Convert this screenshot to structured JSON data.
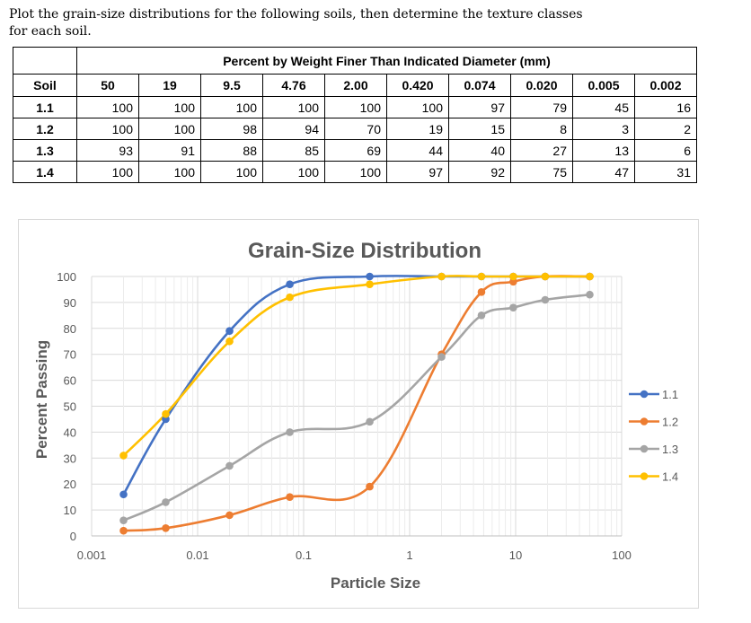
{
  "problem": {
    "line1": "Plot the grain-size distributions for the following soils, then determine the texture classes",
    "line2": "for each soil."
  },
  "table": {
    "caption": "Percent by Weight Finer Than Indicated Diameter (mm)",
    "soil_header": "Soil",
    "diameters": [
      "50",
      "19",
      "9.5",
      "4.76",
      "2.00",
      "0.420",
      "0.074",
      "0.020",
      "0.005",
      "0.002"
    ],
    "rows": [
      {
        "soil": "1.1",
        "values": [
          "100",
          "100",
          "100",
          "100",
          "100",
          "100",
          "97",
          "79",
          "45",
          "16"
        ]
      },
      {
        "soil": "1.2",
        "values": [
          "100",
          "100",
          "98",
          "94",
          "70",
          "19",
          "15",
          "8",
          "3",
          "2"
        ]
      },
      {
        "soil": "1.3",
        "values": [
          "93",
          "91",
          "88",
          "85",
          "69",
          "44",
          "40",
          "27",
          "13",
          "6"
        ]
      },
      {
        "soil": "1.4",
        "values": [
          "100",
          "100",
          "100",
          "100",
          "100",
          "97",
          "92",
          "75",
          "47",
          "31"
        ]
      }
    ]
  },
  "chart_data": {
    "type": "scatter",
    "title": "Grain-Size Distribution",
    "xlabel": "Particle Size",
    "ylabel": "Percent Passing",
    "xscale": "log",
    "xlim": [
      0.001,
      100
    ],
    "ylim": [
      0,
      100
    ],
    "x_ticks": [
      "0.001",
      "0.01",
      "0.1",
      "1",
      "10",
      "100"
    ],
    "y_ticks": [
      "0",
      "10",
      "20",
      "30",
      "40",
      "50",
      "60",
      "70",
      "80",
      "90",
      "100"
    ],
    "grid": true,
    "legend": "right",
    "x": [
      0.002,
      0.005,
      0.02,
      0.074,
      0.42,
      2.0,
      4.76,
      9.5,
      19,
      50
    ],
    "series": [
      {
        "name": "1.1",
        "color": "#4472c4",
        "values": [
          16,
          45,
          79,
          97,
          100,
          100,
          100,
          100,
          100,
          100
        ]
      },
      {
        "name": "1.2",
        "color": "#ed7d31",
        "values": [
          2,
          3,
          8,
          15,
          19,
          70,
          94,
          98,
          100,
          100
        ]
      },
      {
        "name": "1.3",
        "color": "#a5a5a5",
        "values": [
          6,
          13,
          27,
          40,
          44,
          69,
          85,
          88,
          91,
          93
        ]
      },
      {
        "name": "1.4",
        "color": "#ffc000",
        "values": [
          31,
          47,
          75,
          92,
          97,
          100,
          100,
          100,
          100,
          100
        ]
      }
    ]
  }
}
